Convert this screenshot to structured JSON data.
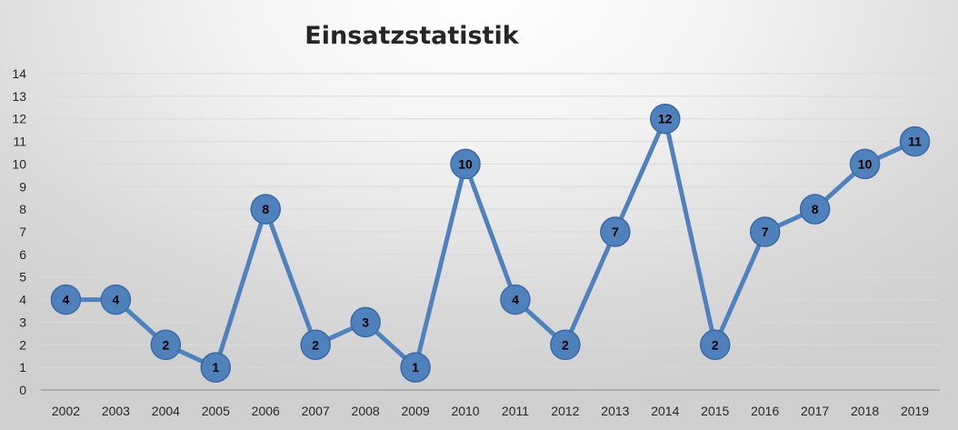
{
  "chart_data": {
    "type": "line",
    "title": "Einsatzstatistik",
    "xlabel": "",
    "ylabel": "",
    "categories": [
      "2002",
      "2003",
      "2004",
      "2005",
      "2006",
      "2007",
      "2008",
      "2009",
      "2010",
      "2011",
      "2012",
      "2013",
      "2014",
      "2015",
      "2016",
      "2017",
      "2018",
      "2019"
    ],
    "series": [
      {
        "values": [
          4,
          4,
          2,
          1,
          8,
          2,
          3,
          1,
          10,
          4,
          2,
          7,
          12,
          2,
          7,
          8,
          10,
          11
        ]
      }
    ],
    "ylim": [
      0,
      14
    ],
    "yticks": [
      0,
      1,
      2,
      3,
      4,
      5,
      6,
      7,
      8,
      9,
      10,
      11,
      12,
      13,
      14
    ],
    "grid": true,
    "legend": "none",
    "data_labels": true,
    "colors": {
      "series": "#4f81bd",
      "marker": "#4f81bd",
      "gridline": "#d9d9d9",
      "axis": "#8c8c8c",
      "text": "#262626"
    }
  }
}
